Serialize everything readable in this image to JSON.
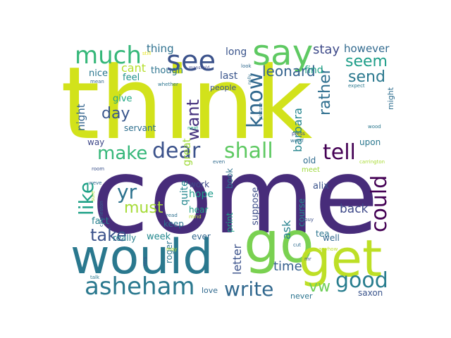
{
  "words": [
    {
      "text": "think",
      "color": "#d2e21b"
    },
    {
      "text": "come",
      "color": "#472c7a"
    },
    {
      "text": "would",
      "color": "#2a788e"
    },
    {
      "text": "go",
      "color": "#7ad151"
    },
    {
      "text": "get",
      "color": "#bddf26"
    },
    {
      "text": "say",
      "color": "#5ec962"
    },
    {
      "text": "see",
      "color": "#3b528b"
    },
    {
      "text": "much",
      "color": "#35b779"
    },
    {
      "text": "asheham",
      "color": "#2a788e"
    },
    {
      "text": "write",
      "color": "#31688e"
    },
    {
      "text": "good",
      "color": "#287d8e"
    },
    {
      "text": "dear",
      "color": "#3b528b"
    },
    {
      "text": "shall",
      "color": "#5ec962"
    },
    {
      "text": "make",
      "color": "#35b779"
    },
    {
      "text": "tell",
      "color": "#440154"
    },
    {
      "text": "know",
      "color": "#31688e"
    },
    {
      "text": "could",
      "color": "#440154"
    },
    {
      "text": "like",
      "color": "#1fa187"
    },
    {
      "text": "yr",
      "color": "#2c728e"
    },
    {
      "text": "must",
      "color": "#a5db36"
    },
    {
      "text": "take",
      "color": "#3b528b"
    },
    {
      "text": "want",
      "color": "#46327e"
    },
    {
      "text": "day",
      "color": "#39568c"
    },
    {
      "text": "seem",
      "color": "#1f9e89"
    },
    {
      "text": "send",
      "color": "#2a788e"
    },
    {
      "text": "leonard",
      "color": "#33628d"
    },
    {
      "text": "rather",
      "color": "#2e6e8e"
    },
    {
      "text": "barbara",
      "color": "#25858e"
    },
    {
      "text": "stay",
      "color": "#3e4a89"
    },
    {
      "text": "however",
      "color": "#30698e"
    },
    {
      "text": "back",
      "color": "#3e4989"
    },
    {
      "text": "vw",
      "color": "#6ece58"
    },
    {
      "text": "time",
      "color": "#355f8d"
    },
    {
      "text": "letter",
      "color": "#3b528b"
    },
    {
      "text": "ask",
      "color": "#26828e"
    },
    {
      "text": "night",
      "color": "#33638d"
    },
    {
      "text": "great",
      "color": "#9fda3a"
    },
    {
      "text": "cant",
      "color": "#b5de2b"
    },
    {
      "text": "thing",
      "color": "#2d708e"
    },
    {
      "text": "long",
      "color": "#3a548c"
    },
    {
      "text": "find",
      "color": "#20a386"
    },
    {
      "text": "nice",
      "color": "#2a768e"
    },
    {
      "text": "feel",
      "color": "#21918c"
    },
    {
      "text": "though",
      "color": "#2c738e"
    },
    {
      "text": "last",
      "color": "#39558c"
    },
    {
      "text": "people",
      "color": "#3b528b"
    },
    {
      "text": "give",
      "color": "#22a884"
    },
    {
      "text": "servant",
      "color": "#2e6f8e"
    },
    {
      "text": "way",
      "color": "#3f4889"
    },
    {
      "text": "fact",
      "color": "#27808e"
    },
    {
      "text": "quite",
      "color": "#24878e"
    },
    {
      "text": "hope",
      "color": "#1e9b8a"
    },
    {
      "text": "hear",
      "color": "#1fa088"
    },
    {
      "text": "work",
      "color": "#3e4a89"
    },
    {
      "text": "keep",
      "color": "#2c718e"
    },
    {
      "text": "ever",
      "color": "#31668e"
    },
    {
      "text": "week",
      "color": "#23888e"
    },
    {
      "text": "really",
      "color": "#277f8e"
    },
    {
      "text": "roger",
      "color": "#2b758e"
    },
    {
      "text": "print",
      "color": "#20a486"
    },
    {
      "text": "book",
      "color": "#2d718e"
    },
    {
      "text": "suppose",
      "color": "#3d4e8a"
    },
    {
      "text": "course",
      "color": "#238a8d"
    },
    {
      "text": "alix",
      "color": "#3a538b"
    },
    {
      "text": "tea",
      "color": "#2b748e"
    },
    {
      "text": "well",
      "color": "#31678e"
    },
    {
      "text": "old",
      "color": "#2f6c8e"
    },
    {
      "text": "meet",
      "color": "#9dd93b"
    },
    {
      "text": "upon",
      "color": "#2a778e"
    },
    {
      "text": "might",
      "color": "#2e6d8e"
    },
    {
      "text": "saxon",
      "color": "#3a548c"
    },
    {
      "text": "never",
      "color": "#2b748e"
    },
    {
      "text": "love",
      "color": "#30698e"
    },
    {
      "text": "still",
      "color": "#e5e419"
    },
    {
      "text": "mean",
      "color": "#31678e"
    },
    {
      "text": "whether",
      "color": "#2b748e"
    },
    {
      "text": "mansfield",
      "color": "#3e4989"
    },
    {
      "text": "look",
      "color": "#30698e"
    },
    {
      "text": "nelly",
      "color": "#2e6f8e"
    },
    {
      "text": "picture",
      "color": "#2f6b8e"
    },
    {
      "text": "expect",
      "color": "#2a788e"
    },
    {
      "text": "next",
      "color": "#25ac82"
    },
    {
      "text": "wood",
      "color": "#2a778e"
    },
    {
      "text": "press",
      "color": "#3d4d8a"
    },
    {
      "text": "woolf",
      "color": "#2e6d8e"
    },
    {
      "text": "carrington",
      "color": "#a8db34"
    },
    {
      "text": "room",
      "color": "#3b528b"
    },
    {
      "text": "even",
      "color": "#2f6a8d"
    },
    {
      "text": "weve",
      "color": "#2e6e8e"
    },
    {
      "text": "sure",
      "color": "#a8db34"
    },
    {
      "text": "charleston",
      "color": "#31668e"
    },
    {
      "text": "read",
      "color": "#2d708e"
    },
    {
      "text": "mind",
      "color": "#b8de29"
    },
    {
      "text": "buy",
      "color": "#3c4f8a"
    },
    {
      "text": "anyhow",
      "color": "#bddf26"
    },
    {
      "text": "cut",
      "color": "#2f6b8e"
    },
    {
      "text": "mr",
      "color": "#3b528b"
    },
    {
      "text": "mrs",
      "color": "#3b528b"
    },
    {
      "text": "may",
      "color": "#b5de2b"
    },
    {
      "text": "talk",
      "color": "#2a788e"
    }
  ]
}
